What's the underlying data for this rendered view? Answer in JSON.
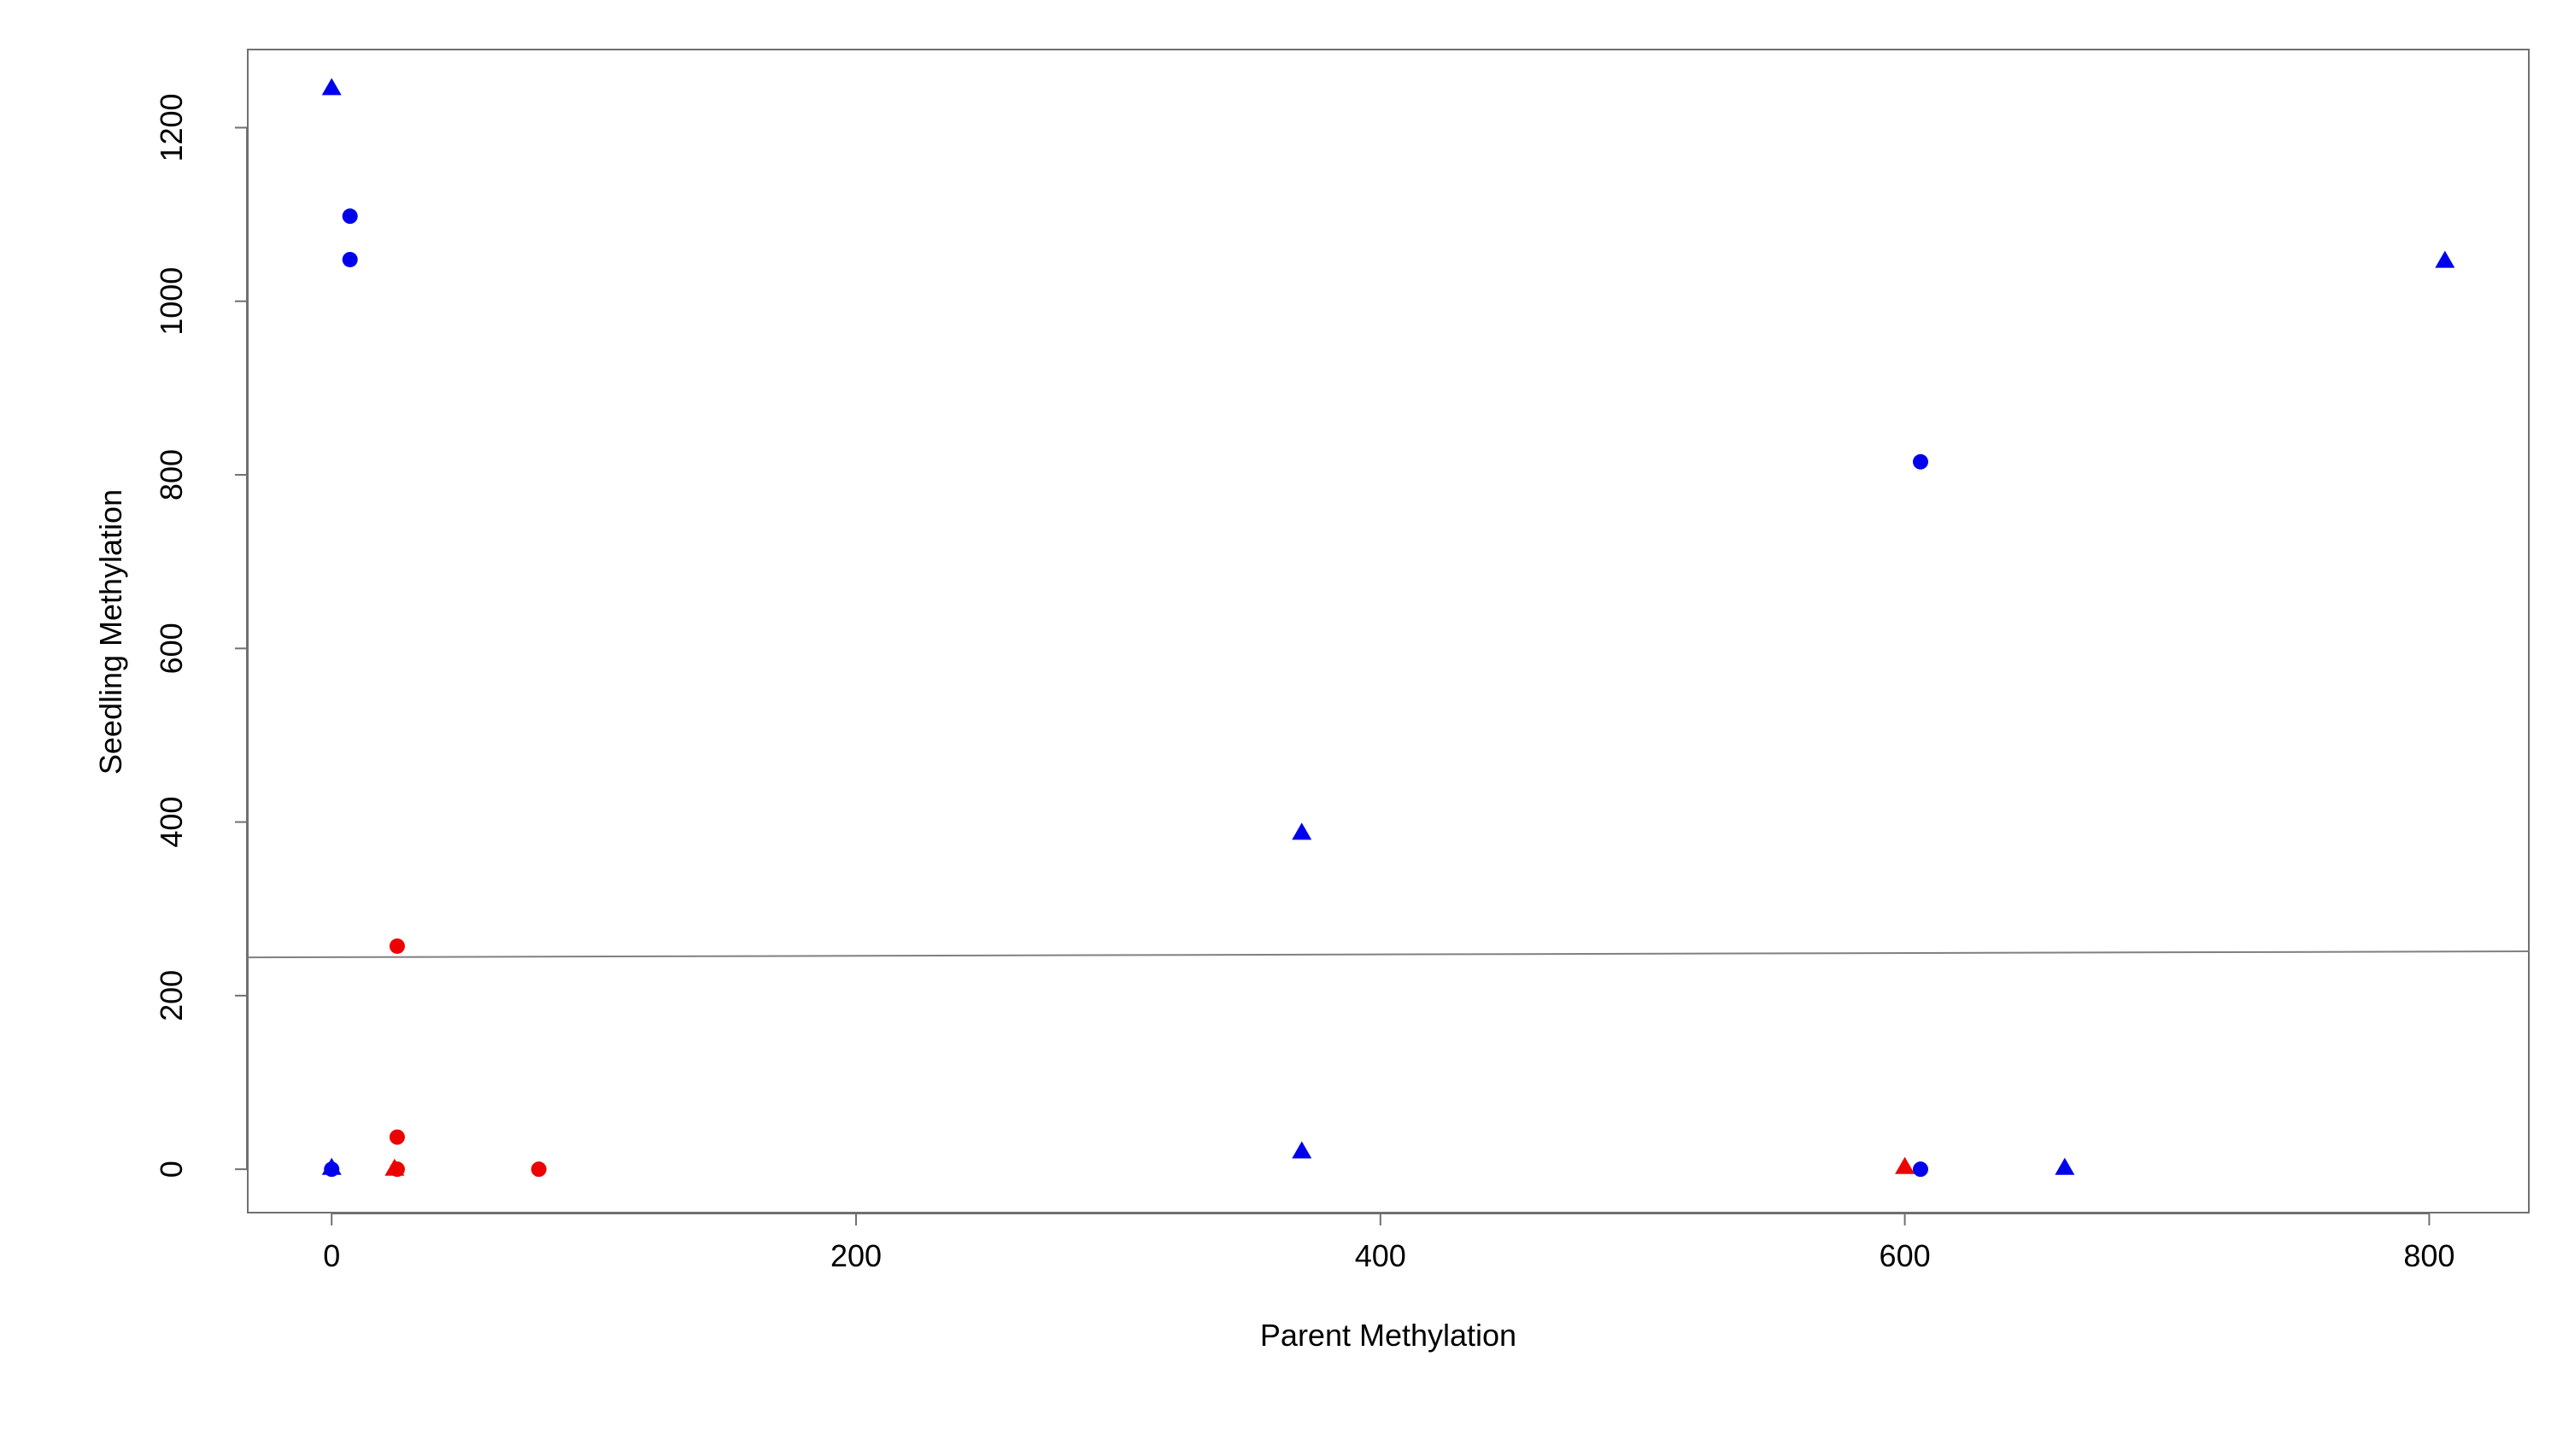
{
  "chart_data": {
    "type": "scatter",
    "title": "",
    "xlabel": "Parent Methylation",
    "ylabel": "Seedling Methylation",
    "xlim": [
      -32,
      838
    ],
    "ylim": [
      -50,
      1290
    ],
    "x_ticks": [
      0,
      200,
      400,
      600,
      800
    ],
    "y_ticks": [
      0,
      200,
      400,
      600,
      800,
      1000,
      1200
    ],
    "x_tick_labels": [
      "0",
      "200",
      "400",
      "600",
      "800"
    ],
    "y_tick_labels": [
      "0",
      "200",
      "400",
      "600",
      "800",
      "1000",
      "1200"
    ],
    "grid": false,
    "legend": "none",
    "colors": {
      "red": "#ee0000",
      "blue": "#0000ee",
      "axis": "#707070",
      "regression": "#808080"
    },
    "series": [
      {
        "color": "red",
        "marker": "circle",
        "points": [
          {
            "x": 25,
            "y": 257
          },
          {
            "x": 25,
            "y": 37
          },
          {
            "x": 25,
            "y": 0
          },
          {
            "x": 79,
            "y": 0
          }
        ]
      },
      {
        "color": "red",
        "marker": "triangle",
        "points": [
          {
            "x": 24,
            "y": 0
          },
          {
            "x": 600,
            "y": 2
          }
        ]
      },
      {
        "color": "blue",
        "marker": "circle",
        "points": [
          {
            "x": 7,
            "y": 1098
          },
          {
            "x": 7,
            "y": 1048
          },
          {
            "x": 0,
            "y": 0
          },
          {
            "x": 606,
            "y": 815
          },
          {
            "x": 606,
            "y": 0
          }
        ]
      },
      {
        "color": "blue",
        "marker": "triangle",
        "points": [
          {
            "x": 0,
            "y": 1245
          },
          {
            "x": 0,
            "y": 1
          },
          {
            "x": 370,
            "y": 387
          },
          {
            "x": 370,
            "y": 20
          },
          {
            "x": 661,
            "y": 1
          },
          {
            "x": 806,
            "y": 1046
          }
        ]
      }
    ],
    "regression_line": {
      "x": [
        -32,
        838
      ],
      "y": [
        244,
        251
      ]
    }
  }
}
